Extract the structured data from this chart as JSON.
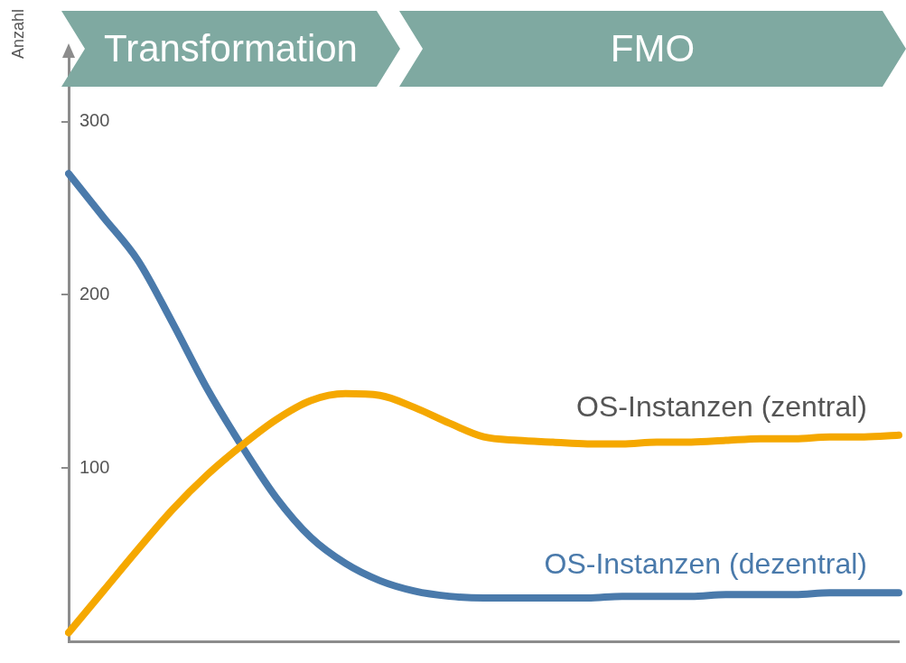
{
  "chart_data": {
    "type": "line",
    "ylabel": "Anzahl",
    "categories": [
      null,
      null,
      null,
      null,
      null,
      null,
      null,
      null,
      null,
      null,
      null,
      null,
      null,
      null,
      null,
      null,
      null,
      null,
      null,
      null,
      null,
      null,
      null,
      null,
      null
    ],
    "series": [
      {
        "name": "OS-Instanzen (zentral)",
        "color": "#f5a800",
        "values": [
          5,
          29,
          53,
          76,
          96,
          113,
          128,
          139,
          143,
          142,
          135,
          126,
          118,
          116,
          115,
          114,
          114,
          115,
          115,
          116,
          117,
          117,
          118,
          118,
          119
        ]
      },
      {
        "name": "OS-Instanzen (dezentral)",
        "color": "#4a7aab",
        "values": [
          270,
          245,
          220,
          184,
          146,
          113,
          83,
          60,
          45,
          35,
          29,
          26,
          25,
          25,
          25,
          25,
          26,
          26,
          26,
          27,
          27,
          27,
          28,
          28,
          28
        ]
      }
    ],
    "ylim": [
      0,
      340
    ],
    "yticks": [
      100,
      200,
      300
    ],
    "grid": false,
    "legend": false,
    "annotations": [
      "Transformation",
      "FMO"
    ]
  }
}
